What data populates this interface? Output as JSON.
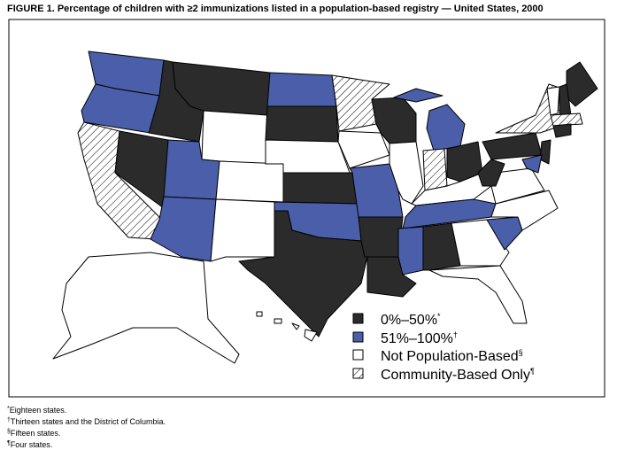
{
  "title": "FIGURE 1. Percentage of children with ≥2 immunizations listed in a population-based registry — United States, 2000",
  "legend": [
    {
      "label": "0%–50%",
      "note": "*"
    },
    {
      "label": "51%–100%",
      "note": "†"
    },
    {
      "label": "Not Population-Based",
      "note": "§"
    },
    {
      "label": "Community-Based Only",
      "note": "¶"
    }
  ],
  "footnotes": [
    {
      "mark": "*",
      "text": "Eighteen states."
    },
    {
      "mark": "†",
      "text": "Thirteen states and the District of Columbia."
    },
    {
      "mark": "§",
      "text": "Fifteen states."
    },
    {
      "mark": "¶",
      "text": "Four states."
    }
  ]
}
